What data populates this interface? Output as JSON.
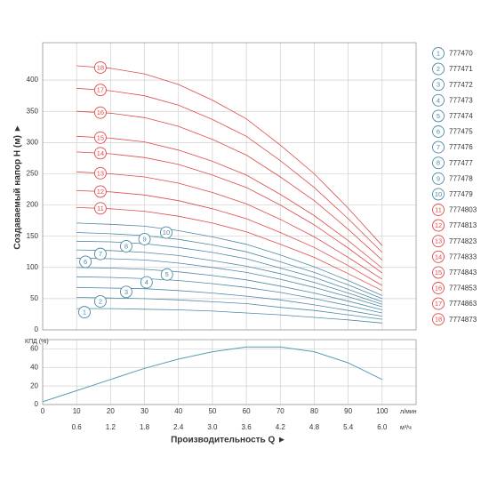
{
  "chart_data": [
    {
      "type": "line",
      "ylabel": "Создаваемый напор Н (м) ►",
      "x": [
        10,
        20,
        30,
        40,
        50,
        60,
        70,
        80,
        90,
        100
      ],
      "xlim": [
        0,
        110
      ],
      "ylim": [
        0,
        460
      ],
      "yticks": [
        0,
        50,
        100,
        150,
        200,
        250,
        300,
        350,
        400
      ],
      "grid": true,
      "legend": "right",
      "series": [
        {
          "label": "1",
          "name": "777470",
          "color": "#4f8aa6",
          "values": [
            34,
            34,
            33,
            32,
            30,
            27,
            24,
            20,
            16,
            11
          ]
        },
        {
          "label": "2",
          "name": "777471",
          "color": "#4f8aa6",
          "values": [
            52,
            51,
            50,
            48,
            45,
            42,
            36,
            31,
            24,
            17
          ]
        },
        {
          "label": "3",
          "name": "777472",
          "color": "#4f8aa6",
          "values": [
            68,
            67,
            66,
            63,
            59,
            54,
            48,
            40,
            31,
            22
          ]
        },
        {
          "label": "4",
          "name": "777473",
          "color": "#4f8aa6",
          "values": [
            85,
            84,
            82,
            79,
            74,
            68,
            60,
            50,
            39,
            27
          ]
        },
        {
          "label": "5",
          "name": "777474",
          "color": "#4f8aa6",
          "values": [
            100,
            99,
            97,
            93,
            87,
            80,
            70,
            59,
            46,
            32
          ]
        },
        {
          "label": "6",
          "name": "777475",
          "color": "#4f8aa6",
          "values": [
            115,
            114,
            112,
            107,
            100,
            92,
            81,
            68,
            53,
            37
          ]
        },
        {
          "label": "7",
          "name": "777476",
          "color": "#4f8aa6",
          "values": [
            128,
            127,
            124,
            119,
            111,
            102,
            90,
            76,
            59,
            41
          ]
        },
        {
          "label": "8",
          "name": "777477",
          "color": "#4f8aa6",
          "values": [
            142,
            141,
            138,
            132,
            124,
            114,
            99,
            84,
            65,
            45
          ]
        },
        {
          "label": "9",
          "name": "777478",
          "color": "#4f8aa6",
          "values": [
            156,
            154,
            151,
            145,
            136,
            125,
            109,
            92,
            72,
            50
          ]
        },
        {
          "label": "10",
          "name": "777479",
          "color": "#4f8aa6",
          "values": [
            171,
            169,
            166,
            159,
            149,
            137,
            120,
            101,
            79,
            55
          ]
        },
        {
          "label": "11",
          "name": "7774803",
          "color": "#e04a4a",
          "values": [
            196,
            194,
            190,
            182,
            171,
            157,
            137,
            116,
            90,
            63
          ]
        },
        {
          "label": "12",
          "name": "7774813",
          "color": "#e04a4a",
          "values": [
            223,
            221,
            216,
            207,
            194,
            178,
            156,
            132,
            103,
            71
          ]
        },
        {
          "label": "13",
          "name": "7774823",
          "color": "#e04a4a",
          "values": [
            253,
            250,
            245,
            235,
            220,
            202,
            177,
            149,
            116,
            81
          ]
        },
        {
          "label": "14",
          "name": "7774833",
          "color": "#e04a4a",
          "values": [
            285,
            282,
            276,
            265,
            248,
            228,
            200,
            168,
            131,
            91
          ]
        },
        {
          "label": "15",
          "name": "7774843",
          "color": "#e04a4a",
          "values": [
            310,
            307,
            301,
            288,
            270,
            248,
            217,
            183,
            143,
            99
          ]
        },
        {
          "label": "16",
          "name": "7774853",
          "color": "#e04a4a",
          "values": [
            350,
            347,
            340,
            326,
            305,
            280,
            245,
            207,
            161,
            112
          ]
        },
        {
          "label": "17",
          "name": "7774863",
          "color": "#e04a4a",
          "values": [
            387,
            383,
            375,
            360,
            337,
            310,
            271,
            228,
            178,
            124
          ]
        },
        {
          "label": "18",
          "name": "7774873",
          "color": "#e04a4a",
          "values": [
            423,
            419,
            410,
            393,
            368,
            338,
            296,
            250,
            195,
            135
          ]
        }
      ]
    },
    {
      "type": "line",
      "ylabel": "КПД (%)",
      "xlabel": "Производительность Q ►",
      "x_unit": "л/мин",
      "x2_unit": "м³/ч",
      "x": [
        0,
        10,
        20,
        30,
        40,
        50,
        60,
        70,
        80,
        90,
        100
      ],
      "values": [
        3,
        15,
        27,
        39,
        49,
        57,
        62,
        62,
        57,
        45,
        27
      ],
      "color": "#5b9bb5",
      "xlim": [
        0,
        110
      ],
      "xticks": [
        0,
        10,
        20,
        30,
        40,
        50,
        60,
        70,
        80,
        90,
        100
      ],
      "x2lim": [
        0,
        6.6
      ],
      "x2ticks": [
        0.6,
        1.2,
        1.8,
        2.4,
        {
          "value": 3,
          "label": "3.0"
        },
        3.6,
        4.2,
        4.8,
        5.4,
        {
          "value": 6,
          "label": "6.0"
        }
      ],
      "ylim": [
        0,
        70
      ],
      "yticks": [
        0,
        20,
        40,
        60
      ],
      "grid": true
    }
  ]
}
